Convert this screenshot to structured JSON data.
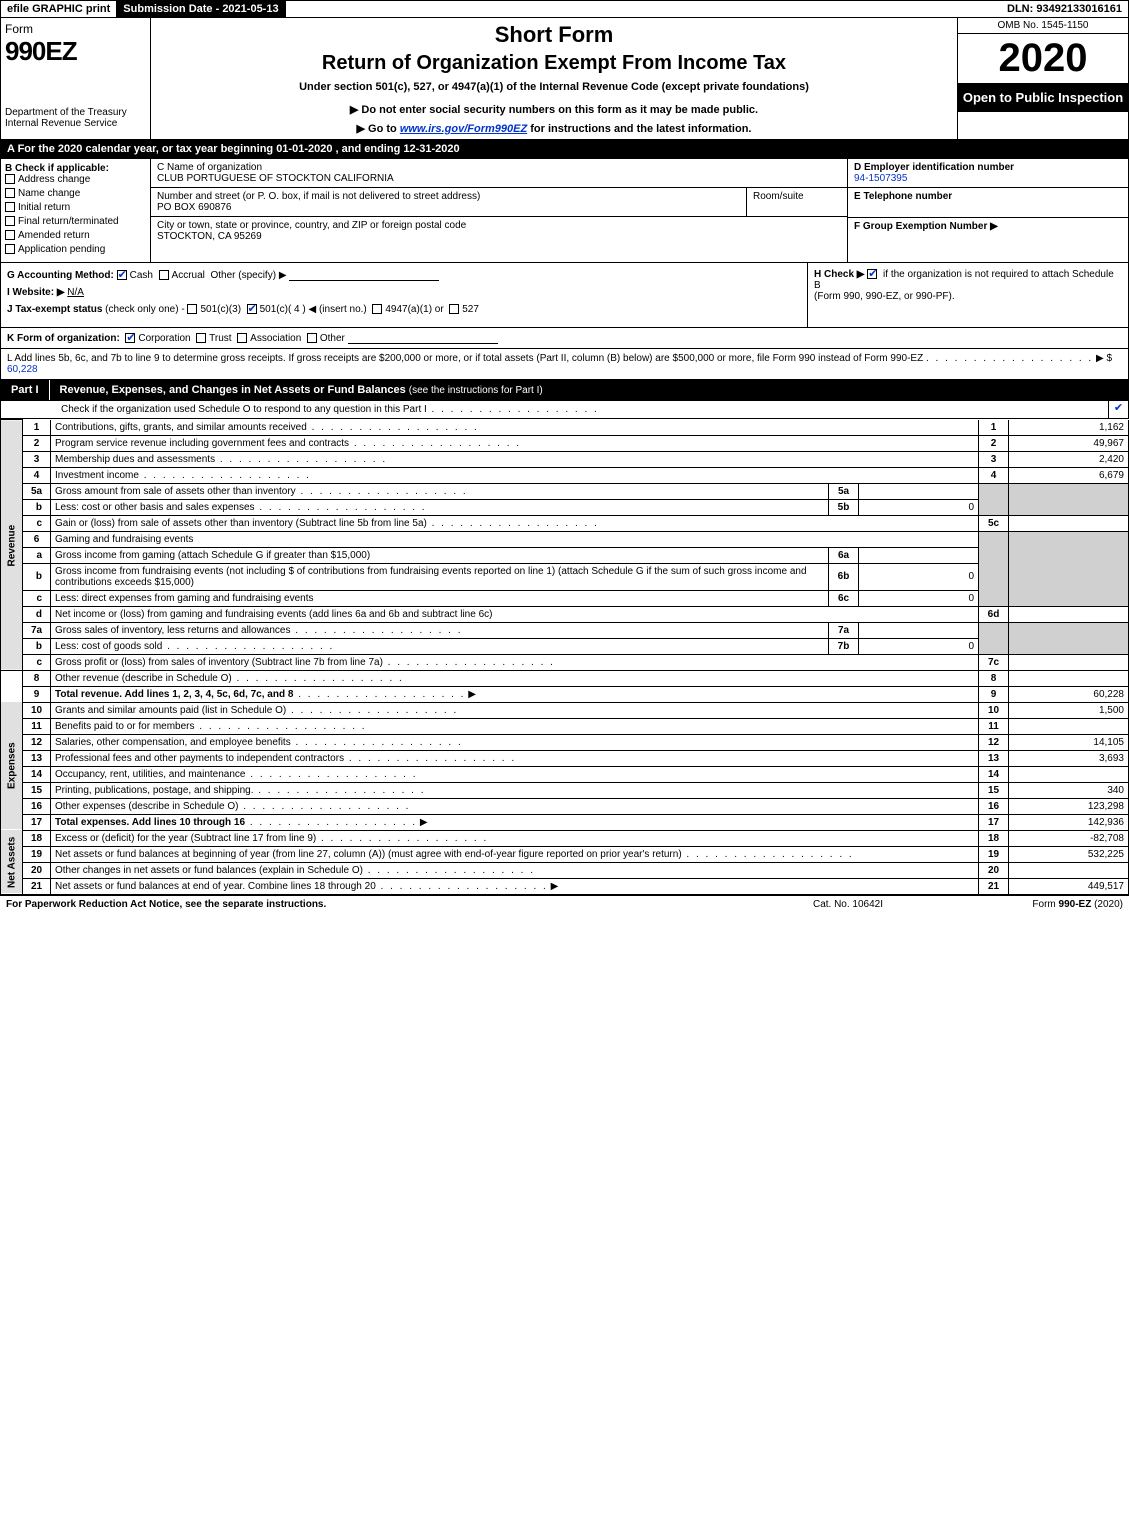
{
  "topbar": {
    "efile": "efile GRAPHIC print",
    "subdate_label": "Submission Date - 2021-05-13",
    "dln": "DLN: 93492133016161"
  },
  "header": {
    "form_word": "Form",
    "form_num": "990EZ",
    "short_form": "Short Form",
    "title": "Return of Organization Exempt From Income Tax",
    "under": "Under section 501(c), 527, or 4947(a)(1) of the Internal Revenue Code (except private foundations)",
    "warn1": "▶ Do not enter social security numbers on this form as it may be made public.",
    "warn2_pre": "▶ Go to ",
    "warn2_link": "www.irs.gov/Form990EZ",
    "warn2_post": " for instructions and the latest information.",
    "dept1": "Department of the Treasury",
    "dept2": "Internal Revenue Service",
    "omb": "OMB No. 1545-1150",
    "year": "2020",
    "open": "Open to Public Inspection"
  },
  "line_a": "A For the 2020 calendar year, or tax year beginning 01-01-2020 , and ending 12-31-2020",
  "section_b": {
    "label": "B Check if applicable:",
    "items": [
      "Address change",
      "Name change",
      "Initial return",
      "Final return/terminated",
      "Amended return",
      "Application pending"
    ]
  },
  "section_c": {
    "clabel": "C Name of organization",
    "cname": "CLUB PORTUGUESE OF STOCKTON CALIFORNIA",
    "addr_label": "Number and street (or P. O. box, if mail is not delivered to street address)",
    "addr": "PO BOX 690876",
    "room_label": "Room/suite",
    "city_label": "City or town, state or province, country, and ZIP or foreign postal code",
    "city": "STOCKTON, CA  95269"
  },
  "section_def": {
    "d_label": "D Employer identification number",
    "d_val": "94-1507395",
    "e_label": "E Telephone number",
    "f_label": "F Group Exemption Number  ▶"
  },
  "section_g": {
    "glabel": "G Accounting Method:",
    "gcash": "Cash",
    "gaccr": "Accrual",
    "gother": "Other (specify) ▶",
    "ilabel": "I Website: ▶",
    "ival": "N/A",
    "jlabel": "J Tax-exempt status",
    "jnote": " (check only one) - ",
    "j1": "501(c)(3)",
    "j2": "501(c)( 4 ) ◀ (insert no.)",
    "j3": "4947(a)(1) or",
    "j4": "527"
  },
  "section_h": {
    "hlabel": "H  Check ▶",
    "htext": " if the organization is not required to attach Schedule B",
    "htext2": "(Form 990, 990-EZ, or 990-PF)."
  },
  "line_k": {
    "label": "K Form of organization:",
    "opts": [
      "Corporation",
      "Trust",
      "Association",
      "Other"
    ]
  },
  "line_l": {
    "text": "L Add lines 5b, 6c, and 7b to line 9 to determine gross receipts. If gross receipts are $200,000 or more, or if total assets (Part II, column (B) below) are $500,000 or more, file Form 990 instead of Form 990-EZ",
    "arrow": "▶ $ ",
    "val": "60,228"
  },
  "part1": {
    "label": "Part I",
    "title": "Revenue, Expenses, and Changes in Net Assets or Fund Balances",
    "title_note": " (see the instructions for Part I)",
    "check_o": "Check if the organization used Schedule O to respond to any question in this Part I"
  },
  "sidetabs": {
    "rev": "Revenue",
    "exp": "Expenses",
    "net": "Net Assets"
  },
  "rows": {
    "r1": {
      "n": "1",
      "d": "Contributions, gifts, grants, and similar amounts received",
      "rn": "1",
      "v": "1,162"
    },
    "r2": {
      "n": "2",
      "d": "Program service revenue including government fees and contracts",
      "rn": "2",
      "v": "49,967"
    },
    "r3": {
      "n": "3",
      "d": "Membership dues and assessments",
      "rn": "3",
      "v": "2,420"
    },
    "r4": {
      "n": "4",
      "d": "Investment income",
      "rn": "4",
      "v": "6,679"
    },
    "r5a": {
      "n": "5a",
      "d": "Gross amount from sale of assets other than inventory",
      "mn": "5a",
      "mv": ""
    },
    "r5b": {
      "n": "b",
      "d": "Less: cost or other basis and sales expenses",
      "mn": "5b",
      "mv": "0"
    },
    "r5c": {
      "n": "c",
      "d": "Gain or (loss) from sale of assets other than inventory (Subtract line 5b from line 5a)",
      "rn": "5c",
      "v": ""
    },
    "r6": {
      "n": "6",
      "d": "Gaming and fundraising events"
    },
    "r6a": {
      "n": "a",
      "d": "Gross income from gaming (attach Schedule G if greater than $15,000)",
      "mn": "6a",
      "mv": ""
    },
    "r6b": {
      "n": "b",
      "d": "Gross income from fundraising events (not including $               of contributions from fundraising events reported on line 1) (attach Schedule G if the sum of such gross income and contributions exceeds $15,000)",
      "mn": "6b",
      "mv": "0"
    },
    "r6c": {
      "n": "c",
      "d": "Less: direct expenses from gaming and fundraising events",
      "mn": "6c",
      "mv": "0"
    },
    "r6d": {
      "n": "d",
      "d": "Net income or (loss) from gaming and fundraising events (add lines 6a and 6b and subtract line 6c)",
      "rn": "6d",
      "v": ""
    },
    "r7a": {
      "n": "7a",
      "d": "Gross sales of inventory, less returns and allowances",
      "mn": "7a",
      "mv": ""
    },
    "r7b": {
      "n": "b",
      "d": "Less: cost of goods sold",
      "mn": "7b",
      "mv": "0"
    },
    "r7c": {
      "n": "c",
      "d": "Gross profit or (loss) from sales of inventory (Subtract line 7b from line 7a)",
      "rn": "7c",
      "v": ""
    },
    "r8": {
      "n": "8",
      "d": "Other revenue (describe in Schedule O)",
      "rn": "8",
      "v": ""
    },
    "r9": {
      "n": "9",
      "d": "Total revenue. Add lines 1, 2, 3, 4, 5c, 6d, 7c, and 8",
      "rn": "9",
      "v": "60,228",
      "arrow": "▶"
    },
    "r10": {
      "n": "10",
      "d": "Grants and similar amounts paid (list in Schedule O)",
      "rn": "10",
      "v": "1,500"
    },
    "r11": {
      "n": "11",
      "d": "Benefits paid to or for members",
      "rn": "11",
      "v": ""
    },
    "r12": {
      "n": "12",
      "d": "Salaries, other compensation, and employee benefits",
      "rn": "12",
      "v": "14,105"
    },
    "r13": {
      "n": "13",
      "d": "Professional fees and other payments to independent contractors",
      "rn": "13",
      "v": "3,693"
    },
    "r14": {
      "n": "14",
      "d": "Occupancy, rent, utilities, and maintenance",
      "rn": "14",
      "v": ""
    },
    "r15": {
      "n": "15",
      "d": "Printing, publications, postage, and shipping.",
      "rn": "15",
      "v": "340"
    },
    "r16": {
      "n": "16",
      "d": "Other expenses (describe in Schedule O)",
      "rn": "16",
      "v": "123,298"
    },
    "r17": {
      "n": "17",
      "d": "Total expenses. Add lines 10 through 16",
      "rn": "17",
      "v": "142,936",
      "arrow": "▶"
    },
    "r18": {
      "n": "18",
      "d": "Excess or (deficit) for the year (Subtract line 17 from line 9)",
      "rn": "18",
      "v": "-82,708"
    },
    "r19": {
      "n": "19",
      "d": "Net assets or fund balances at beginning of year (from line 27, column (A)) (must agree with end-of-year figure reported on prior year's return)",
      "rn": "19",
      "v": "532,225"
    },
    "r20": {
      "n": "20",
      "d": "Other changes in net assets or fund balances (explain in Schedule O)",
      "rn": "20",
      "v": ""
    },
    "r21": {
      "n": "21",
      "d": "Net assets or fund balances at end of year. Combine lines 18 through 20",
      "rn": "21",
      "v": "449,517",
      "arrow": "▶"
    }
  },
  "footer": {
    "left": "For Paperwork Reduction Act Notice, see the separate instructions.",
    "center": "Cat. No. 10642I",
    "right_pre": "Form ",
    "right_bold": "990-EZ",
    "right_post": " (2020)"
  },
  "colors": {
    "black": "#000000",
    "white": "#ffffff",
    "link": "#0033cc",
    "shade": "#d0d0d0"
  }
}
